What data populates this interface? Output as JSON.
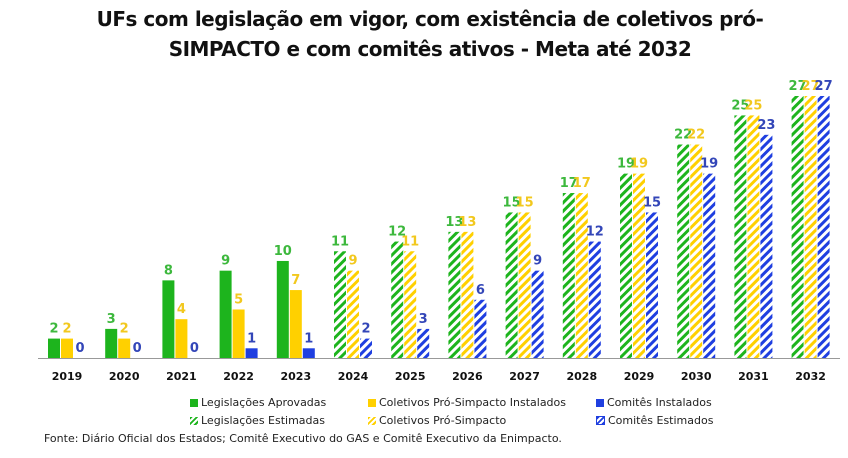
{
  "chart_data": {
    "type": "bar",
    "title": "UFs com legislação em vigor, com existência de coletivos pró-SIMPACTO e com comitês ativos - Meta até 2032",
    "categories": [
      "2019",
      "2020",
      "2021",
      "2022",
      "2023",
      "2024",
      "2025",
      "2026",
      "2027",
      "2028",
      "2029",
      "2030",
      "2031",
      "2032"
    ],
    "estimated_from": "2024",
    "series": [
      {
        "name": "Legislações Aprovadas",
        "estimated_name": "Legislações Estimadas",
        "color": "#1DB41D",
        "label_color": "#3DB83D",
        "values": [
          2,
          3,
          8,
          9,
          10,
          11,
          12,
          13,
          15,
          17,
          19,
          22,
          25,
          27
        ]
      },
      {
        "name": "Coletivos Pró-Simpacto Instalados",
        "estimated_name": "Coletivos Pró-Simpacto",
        "color": "#FFD000",
        "label_color": "#F2C81E",
        "values": [
          2,
          2,
          4,
          5,
          7,
          9,
          11,
          13,
          15,
          17,
          19,
          22,
          25,
          27
        ]
      },
      {
        "name": "Comitês Instalados",
        "estimated_name": "Comitês Estimados",
        "color": "#1F3FE0",
        "label_color": "#3346B8",
        "values": [
          0,
          0,
          0,
          1,
          1,
          2,
          3,
          6,
          9,
          12,
          15,
          19,
          23,
          27
        ]
      }
    ],
    "ylim": [
      0,
      27
    ],
    "grid": false,
    "legend_position": "bottom"
  },
  "source": "Fonte: Diário Oficial dos Estados; Comitê Executivo do GAS e Comitê Executivo da Enimpacto."
}
